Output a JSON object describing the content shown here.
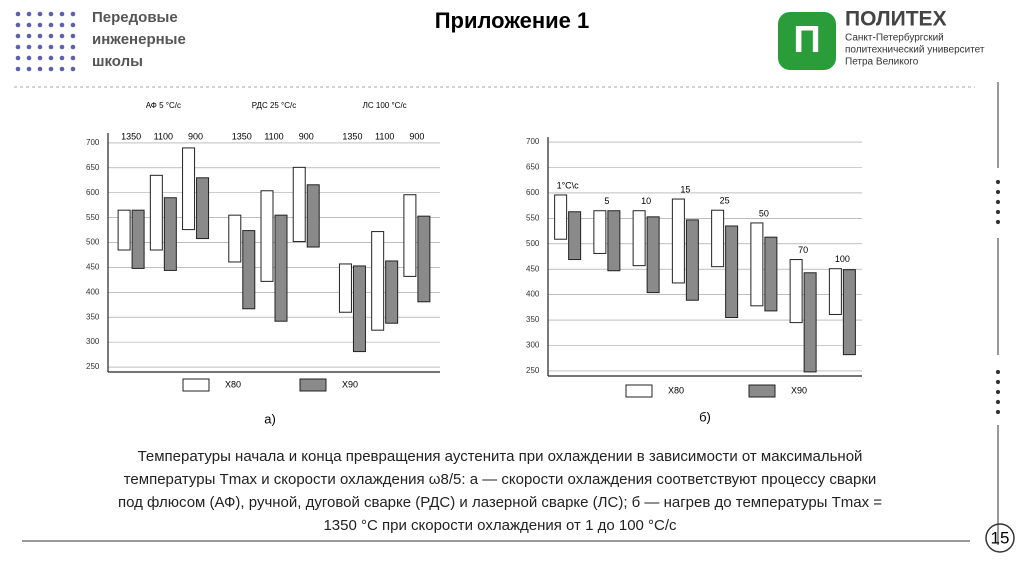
{
  "header": {
    "school": [
      "Передовые",
      "инженерные",
      "школы"
    ],
    "title": "Приложение 1",
    "logo_name": "ПОЛИТЕХ",
    "logo_sub": [
      "Санкт-Петербургский",
      "политехнический университет",
      "Петра Великого"
    ]
  },
  "chart_data": [
    {
      "type": "range-bar",
      "label": "а)",
      "groups": [
        "АФ  5 °С/с",
        "РДС  25 °С/с",
        "ЛС  100 °С/с"
      ],
      "categories": [
        "1350",
        "1100",
        "900",
        "1350",
        "1100",
        "900",
        "1350",
        "1100",
        "900"
      ],
      "series": [
        {
          "name": "X80",
          "color": "#ffffff",
          "values": [
            [
              485,
              565
            ],
            [
              485,
              635
            ],
            [
              526,
              690
            ],
            [
              461,
              555
            ],
            [
              422,
              604
            ],
            [
              502,
              651
            ],
            [
              360,
              457
            ],
            [
              324,
              522
            ],
            [
              432,
              596
            ]
          ]
        },
        {
          "name": "X90",
          "color": "#8a8a8a",
          "values": [
            [
              448,
              565
            ],
            [
              444,
              590
            ],
            [
              508,
              630
            ],
            [
              367,
              524
            ],
            [
              342,
              555
            ],
            [
              491,
              616
            ],
            [
              281,
              453
            ],
            [
              338,
              463
            ],
            [
              381,
              553
            ]
          ]
        }
      ],
      "ylim": [
        240,
        720
      ],
      "yticks": [
        250,
        300,
        350,
        400,
        450,
        500,
        550,
        600,
        650,
        700
      ],
      "grid": true
    },
    {
      "type": "range-bar",
      "label": "б)",
      "categories": [
        "1°С\\с",
        "5",
        "10",
        "15",
        "25",
        "50",
        "70",
        "100"
      ],
      "series": [
        {
          "name": "X80",
          "color": "#ffffff",
          "values": [
            [
              509,
              596
            ],
            [
              481,
              565
            ],
            [
              457,
              565
            ],
            [
              423,
              588
            ],
            [
              455,
              566
            ],
            [
              378,
              541
            ],
            [
              345,
              469
            ],
            [
              361,
              451
            ]
          ]
        },
        {
          "name": "X90",
          "color": "#8a8a8a",
          "values": [
            [
              469,
              563
            ],
            [
              447,
              565
            ],
            [
              404,
              553
            ],
            [
              389,
              547
            ],
            [
              355,
              535
            ],
            [
              368,
              513
            ],
            [
              248,
              443
            ],
            [
              282,
              449
            ]
          ]
        }
      ],
      "ylim": [
        240,
        710
      ],
      "yticks": [
        250,
        300,
        350,
        400,
        450,
        500,
        550,
        600,
        650,
        700
      ],
      "grid": true
    }
  ],
  "caption": [
    "Температуры начала и конца превращения аустенита при охлаждении в зависимости от максимальной",
    "температуры Tmax и скорости охлаждения ω8/5: а — скорости охлаждения соответствуют процессу сварки",
    "под флюсом (АФ), ручной, дуговой сварке (РДС) и лазерной сварке (ЛС); б — нагрев до температуры Tmax =",
    "1350 °С при скорости охлаждения от 1 до 100 °С/с"
  ],
  "page": "15"
}
